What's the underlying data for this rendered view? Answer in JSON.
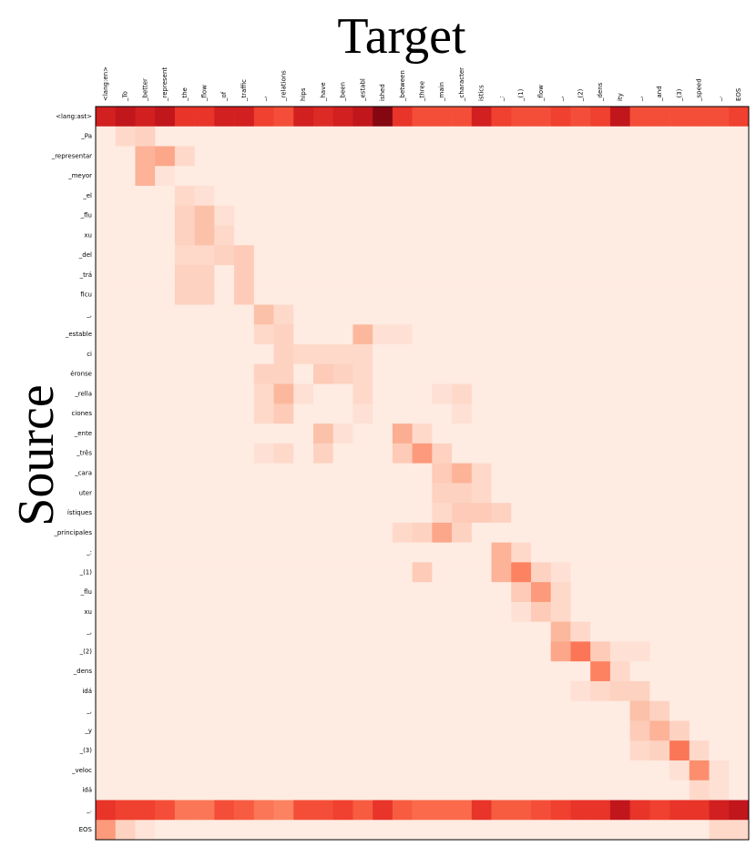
{
  "chart_data": {
    "type": "heatmap",
    "x_label": "Target",
    "y_label": "Source",
    "x_categories": [
      "<lang:en>",
      "_To",
      "_better",
      "_represent",
      "_the",
      "_flow",
      "_of",
      "_traffic",
      "_,",
      "_relations",
      "hips",
      "_have",
      "_been",
      "_establ",
      "ished",
      "_between",
      "_three",
      "_main",
      "_character",
      "istics",
      "_:",
      "_(1)",
      "_flow",
      "_,",
      "_(2)",
      "_dens",
      "ity",
      "_,",
      "_and",
      "_(3)",
      "_speed",
      "_.",
      "EOS"
    ],
    "y_categories": [
      "<lang:ast>",
      "_Pa",
      "_representar",
      "_meyor",
      "_el",
      "_flu",
      "xu",
      "_del",
      "_trá",
      "ficu",
      "_,",
      "_estable",
      "ci",
      "éronse",
      "_rella",
      "ciones",
      "_ente",
      "_três",
      "_cara",
      "uter",
      "ístiques",
      "_principales",
      "_:",
      "_(1)",
      "_flu",
      "xu",
      "_,",
      "_(2)",
      "_dens",
      "idá",
      "_,",
      "_y",
      "_(3)",
      "_veloc",
      "idá",
      "_.",
      "EOS"
    ],
    "zlim": [
      0,
      1
    ],
    "colorscale": [
      "#fff5f0",
      "#fcbba1",
      "#fc9272",
      "#fb6a4a",
      "#ef3b2c",
      "#cb181d",
      "#67000d"
    ],
    "values": [
      [
        0.8,
        0.85,
        0.8,
        0.85,
        0.7,
        0.7,
        0.8,
        0.8,
        0.65,
        0.6,
        0.8,
        0.75,
        0.8,
        0.85,
        0.95,
        0.7,
        0.6,
        0.6,
        0.6,
        0.8,
        0.65,
        0.6,
        0.6,
        0.65,
        0.6,
        0.65,
        0.85,
        0.6,
        0.6,
        0.6,
        0.6,
        0.6,
        0.65
      ],
      [
        0.03,
        0.08,
        0.1,
        0.03,
        0.03,
        0.03,
        0.03,
        0.03,
        0.03,
        0.03,
        0.03,
        0.03,
        0.03,
        0.03,
        0.03,
        0.03,
        0.03,
        0.03,
        0.03,
        0.03,
        0.03,
        0.03,
        0.03,
        0.03,
        0.03,
        0.03,
        0.03,
        0.03,
        0.03,
        0.03,
        0.03,
        0.03,
        0.03
      ],
      [
        0.03,
        0.03,
        0.2,
        0.25,
        0.08,
        0.03,
        0.03,
        0.03,
        0.03,
        0.03,
        0.03,
        0.03,
        0.03,
        0.03,
        0.03,
        0.03,
        0.03,
        0.03,
        0.03,
        0.03,
        0.03,
        0.03,
        0.03,
        0.03,
        0.03,
        0.03,
        0.03,
        0.03,
        0.03,
        0.03,
        0.03,
        0.03,
        0.03
      ],
      [
        0.03,
        0.03,
        0.2,
        0.05,
        0.03,
        0.03,
        0.03,
        0.03,
        0.03,
        0.03,
        0.03,
        0.03,
        0.03,
        0.03,
        0.03,
        0.03,
        0.03,
        0.03,
        0.03,
        0.03,
        0.03,
        0.03,
        0.03,
        0.03,
        0.03,
        0.03,
        0.03,
        0.03,
        0.03,
        0.03,
        0.03,
        0.03,
        0.03
      ],
      [
        0.03,
        0.03,
        0.03,
        0.03,
        0.08,
        0.06,
        0.03,
        0.03,
        0.03,
        0.03,
        0.03,
        0.03,
        0.03,
        0.03,
        0.03,
        0.03,
        0.03,
        0.03,
        0.03,
        0.03,
        0.03,
        0.03,
        0.03,
        0.03,
        0.03,
        0.03,
        0.03,
        0.03,
        0.03,
        0.03,
        0.03,
        0.03,
        0.03
      ],
      [
        0.03,
        0.03,
        0.03,
        0.03,
        0.1,
        0.15,
        0.06,
        0.03,
        0.03,
        0.03,
        0.03,
        0.03,
        0.03,
        0.03,
        0.03,
        0.03,
        0.03,
        0.03,
        0.03,
        0.03,
        0.03,
        0.03,
        0.03,
        0.03,
        0.03,
        0.03,
        0.03,
        0.03,
        0.03,
        0.03,
        0.03,
        0.03,
        0.03
      ],
      [
        0.03,
        0.03,
        0.03,
        0.03,
        0.1,
        0.15,
        0.08,
        0.03,
        0.03,
        0.03,
        0.03,
        0.03,
        0.03,
        0.03,
        0.03,
        0.03,
        0.03,
        0.03,
        0.03,
        0.03,
        0.03,
        0.03,
        0.03,
        0.03,
        0.03,
        0.03,
        0.03,
        0.03,
        0.03,
        0.03,
        0.03,
        0.03,
        0.03
      ],
      [
        0.03,
        0.03,
        0.03,
        0.03,
        0.08,
        0.08,
        0.1,
        0.12,
        0.03,
        0.03,
        0.03,
        0.03,
        0.03,
        0.03,
        0.03,
        0.03,
        0.03,
        0.03,
        0.03,
        0.03,
        0.03,
        0.03,
        0.03,
        0.03,
        0.03,
        0.03,
        0.03,
        0.03,
        0.03,
        0.03,
        0.03,
        0.03,
        0.03
      ],
      [
        0.03,
        0.03,
        0.03,
        0.03,
        0.1,
        0.1,
        0.03,
        0.12,
        0.03,
        0.03,
        0.03,
        0.03,
        0.03,
        0.03,
        0.03,
        0.03,
        0.03,
        0.03,
        0.03,
        0.03,
        0.03,
        0.03,
        0.03,
        0.03,
        0.03,
        0.03,
        0.03,
        0.03,
        0.03,
        0.03,
        0.03,
        0.03,
        0.03
      ],
      [
        0.03,
        0.03,
        0.03,
        0.03,
        0.1,
        0.1,
        0.03,
        0.12,
        0.03,
        0.03,
        0.03,
        0.03,
        0.03,
        0.03,
        0.03,
        0.03,
        0.03,
        0.03,
        0.03,
        0.03,
        0.03,
        0.03,
        0.03,
        0.03,
        0.03,
        0.03,
        0.03,
        0.03,
        0.03,
        0.03,
        0.03,
        0.03,
        0.03
      ],
      [
        0.03,
        0.03,
        0.03,
        0.03,
        0.03,
        0.03,
        0.03,
        0.03,
        0.15,
        0.08,
        0.03,
        0.03,
        0.03,
        0.03,
        0.03,
        0.03,
        0.03,
        0.03,
        0.03,
        0.03,
        0.03,
        0.03,
        0.03,
        0.03,
        0.03,
        0.03,
        0.03,
        0.03,
        0.03,
        0.03,
        0.03,
        0.03,
        0.03
      ],
      [
        0.03,
        0.03,
        0.03,
        0.03,
        0.03,
        0.03,
        0.03,
        0.03,
        0.08,
        0.1,
        0.03,
        0.03,
        0.03,
        0.18,
        0.06,
        0.06,
        0.03,
        0.03,
        0.03,
        0.03,
        0.03,
        0.03,
        0.03,
        0.03,
        0.03,
        0.03,
        0.03,
        0.03,
        0.03,
        0.03,
        0.03,
        0.03,
        0.03
      ],
      [
        0.03,
        0.03,
        0.03,
        0.03,
        0.03,
        0.03,
        0.03,
        0.03,
        0.03,
        0.1,
        0.08,
        0.08,
        0.08,
        0.08,
        0.03,
        0.03,
        0.03,
        0.03,
        0.03,
        0.03,
        0.03,
        0.03,
        0.03,
        0.03,
        0.03,
        0.03,
        0.03,
        0.03,
        0.03,
        0.03,
        0.03,
        0.03,
        0.03
      ],
      [
        0.03,
        0.03,
        0.03,
        0.03,
        0.03,
        0.03,
        0.03,
        0.03,
        0.1,
        0.1,
        0.03,
        0.12,
        0.1,
        0.08,
        0.03,
        0.03,
        0.03,
        0.03,
        0.03,
        0.03,
        0.03,
        0.03,
        0.03,
        0.03,
        0.03,
        0.03,
        0.03,
        0.03,
        0.03,
        0.03,
        0.03,
        0.03,
        0.03
      ],
      [
        0.03,
        0.03,
        0.03,
        0.03,
        0.03,
        0.03,
        0.03,
        0.03,
        0.08,
        0.18,
        0.06,
        0.03,
        0.03,
        0.08,
        0.03,
        0.03,
        0.03,
        0.06,
        0.08,
        0.03,
        0.03,
        0.03,
        0.03,
        0.03,
        0.03,
        0.03,
        0.03,
        0.03,
        0.03,
        0.03,
        0.03,
        0.03,
        0.03
      ],
      [
        0.03,
        0.03,
        0.03,
        0.03,
        0.03,
        0.03,
        0.03,
        0.03,
        0.08,
        0.12,
        0.03,
        0.03,
        0.03,
        0.06,
        0.03,
        0.03,
        0.03,
        0.03,
        0.06,
        0.03,
        0.03,
        0.03,
        0.03,
        0.03,
        0.03,
        0.03,
        0.03,
        0.03,
        0.03,
        0.03,
        0.03,
        0.03,
        0.03
      ],
      [
        0.03,
        0.03,
        0.03,
        0.03,
        0.03,
        0.03,
        0.03,
        0.03,
        0.03,
        0.03,
        0.03,
        0.15,
        0.06,
        0.03,
        0.03,
        0.22,
        0.08,
        0.03,
        0.03,
        0.03,
        0.03,
        0.03,
        0.03,
        0.03,
        0.03,
        0.03,
        0.03,
        0.03,
        0.03,
        0.03,
        0.03,
        0.03,
        0.03
      ],
      [
        0.03,
        0.03,
        0.03,
        0.03,
        0.03,
        0.03,
        0.03,
        0.03,
        0.06,
        0.08,
        0.03,
        0.1,
        0.03,
        0.03,
        0.03,
        0.12,
        0.3,
        0.1,
        0.03,
        0.03,
        0.03,
        0.03,
        0.03,
        0.03,
        0.03,
        0.03,
        0.03,
        0.03,
        0.03,
        0.03,
        0.03,
        0.03,
        0.03
      ],
      [
        0.03,
        0.03,
        0.03,
        0.03,
        0.03,
        0.03,
        0.03,
        0.03,
        0.03,
        0.03,
        0.03,
        0.03,
        0.03,
        0.03,
        0.03,
        0.03,
        0.03,
        0.12,
        0.2,
        0.08,
        0.03,
        0.03,
        0.03,
        0.03,
        0.03,
        0.03,
        0.03,
        0.03,
        0.03,
        0.03,
        0.03,
        0.03,
        0.03
      ],
      [
        0.03,
        0.03,
        0.03,
        0.03,
        0.03,
        0.03,
        0.03,
        0.03,
        0.03,
        0.03,
        0.03,
        0.03,
        0.03,
        0.03,
        0.03,
        0.03,
        0.03,
        0.1,
        0.1,
        0.08,
        0.03,
        0.03,
        0.03,
        0.03,
        0.03,
        0.03,
        0.03,
        0.03,
        0.03,
        0.03,
        0.03,
        0.03,
        0.03
      ],
      [
        0.03,
        0.03,
        0.03,
        0.03,
        0.03,
        0.03,
        0.03,
        0.03,
        0.03,
        0.03,
        0.03,
        0.03,
        0.03,
        0.03,
        0.03,
        0.03,
        0.03,
        0.08,
        0.12,
        0.12,
        0.1,
        0.03,
        0.03,
        0.03,
        0.03,
        0.03,
        0.03,
        0.03,
        0.03,
        0.03,
        0.03,
        0.03,
        0.03
      ],
      [
        0.03,
        0.03,
        0.03,
        0.03,
        0.03,
        0.03,
        0.03,
        0.03,
        0.03,
        0.03,
        0.03,
        0.03,
        0.03,
        0.03,
        0.03,
        0.08,
        0.1,
        0.25,
        0.1,
        0.03,
        0.03,
        0.03,
        0.03,
        0.03,
        0.03,
        0.03,
        0.03,
        0.03,
        0.03,
        0.03,
        0.03,
        0.03,
        0.03
      ],
      [
        0.03,
        0.03,
        0.03,
        0.03,
        0.03,
        0.03,
        0.03,
        0.03,
        0.03,
        0.03,
        0.03,
        0.03,
        0.03,
        0.03,
        0.03,
        0.03,
        0.03,
        0.03,
        0.03,
        0.03,
        0.2,
        0.08,
        0.03,
        0.03,
        0.03,
        0.03,
        0.03,
        0.03,
        0.03,
        0.03,
        0.03,
        0.03,
        0.03
      ],
      [
        0.03,
        0.03,
        0.03,
        0.03,
        0.03,
        0.03,
        0.03,
        0.03,
        0.03,
        0.03,
        0.03,
        0.03,
        0.03,
        0.03,
        0.03,
        0.03,
        0.12,
        0.03,
        0.03,
        0.03,
        0.2,
        0.4,
        0.1,
        0.06,
        0.03,
        0.03,
        0.03,
        0.03,
        0.03,
        0.03,
        0.03,
        0.03,
        0.03
      ],
      [
        0.03,
        0.03,
        0.03,
        0.03,
        0.03,
        0.03,
        0.03,
        0.03,
        0.03,
        0.03,
        0.03,
        0.03,
        0.03,
        0.03,
        0.03,
        0.03,
        0.03,
        0.03,
        0.03,
        0.03,
        0.03,
        0.12,
        0.3,
        0.08,
        0.03,
        0.03,
        0.03,
        0.03,
        0.03,
        0.03,
        0.03,
        0.03,
        0.03
      ],
      [
        0.03,
        0.03,
        0.03,
        0.03,
        0.03,
        0.03,
        0.03,
        0.03,
        0.03,
        0.03,
        0.03,
        0.03,
        0.03,
        0.03,
        0.03,
        0.03,
        0.03,
        0.03,
        0.03,
        0.03,
        0.03,
        0.06,
        0.12,
        0.08,
        0.03,
        0.03,
        0.03,
        0.03,
        0.03,
        0.03,
        0.03,
        0.03,
        0.03
      ],
      [
        0.03,
        0.03,
        0.03,
        0.03,
        0.03,
        0.03,
        0.03,
        0.03,
        0.03,
        0.03,
        0.03,
        0.03,
        0.03,
        0.03,
        0.03,
        0.03,
        0.03,
        0.03,
        0.03,
        0.03,
        0.03,
        0.03,
        0.03,
        0.18,
        0.08,
        0.03,
        0.03,
        0.03,
        0.03,
        0.03,
        0.03,
        0.03,
        0.03
      ],
      [
        0.03,
        0.03,
        0.03,
        0.03,
        0.03,
        0.03,
        0.03,
        0.03,
        0.03,
        0.03,
        0.03,
        0.03,
        0.03,
        0.03,
        0.03,
        0.03,
        0.03,
        0.03,
        0.03,
        0.03,
        0.03,
        0.03,
        0.03,
        0.25,
        0.45,
        0.12,
        0.06,
        0.06,
        0.03,
        0.03,
        0.03,
        0.03,
        0.03
      ],
      [
        0.03,
        0.03,
        0.03,
        0.03,
        0.03,
        0.03,
        0.03,
        0.03,
        0.03,
        0.03,
        0.03,
        0.03,
        0.03,
        0.03,
        0.03,
        0.03,
        0.03,
        0.03,
        0.03,
        0.03,
        0.03,
        0.03,
        0.03,
        0.03,
        0.03,
        0.4,
        0.08,
        0.03,
        0.03,
        0.03,
        0.03,
        0.03,
        0.03
      ],
      [
        0.03,
        0.03,
        0.03,
        0.03,
        0.03,
        0.03,
        0.03,
        0.03,
        0.03,
        0.03,
        0.03,
        0.03,
        0.03,
        0.03,
        0.03,
        0.03,
        0.03,
        0.03,
        0.03,
        0.03,
        0.03,
        0.03,
        0.03,
        0.03,
        0.06,
        0.08,
        0.1,
        0.1,
        0.03,
        0.03,
        0.03,
        0.03,
        0.03
      ],
      [
        0.03,
        0.03,
        0.03,
        0.03,
        0.03,
        0.03,
        0.03,
        0.03,
        0.03,
        0.03,
        0.03,
        0.03,
        0.03,
        0.03,
        0.03,
        0.03,
        0.03,
        0.03,
        0.03,
        0.03,
        0.03,
        0.03,
        0.03,
        0.03,
        0.03,
        0.03,
        0.03,
        0.15,
        0.1,
        0.03,
        0.03,
        0.03,
        0.03
      ],
      [
        0.03,
        0.03,
        0.03,
        0.03,
        0.03,
        0.03,
        0.03,
        0.03,
        0.03,
        0.03,
        0.03,
        0.03,
        0.03,
        0.03,
        0.03,
        0.03,
        0.03,
        0.03,
        0.03,
        0.03,
        0.03,
        0.03,
        0.03,
        0.03,
        0.03,
        0.03,
        0.03,
        0.12,
        0.2,
        0.1,
        0.03,
        0.03,
        0.03
      ],
      [
        0.03,
        0.03,
        0.03,
        0.03,
        0.03,
        0.03,
        0.03,
        0.03,
        0.03,
        0.03,
        0.03,
        0.03,
        0.03,
        0.03,
        0.03,
        0.03,
        0.03,
        0.03,
        0.03,
        0.03,
        0.03,
        0.03,
        0.03,
        0.03,
        0.03,
        0.03,
        0.03,
        0.08,
        0.1,
        0.45,
        0.08,
        0.03,
        0.03
      ],
      [
        0.03,
        0.03,
        0.03,
        0.03,
        0.03,
        0.03,
        0.03,
        0.03,
        0.03,
        0.03,
        0.03,
        0.03,
        0.03,
        0.03,
        0.03,
        0.03,
        0.03,
        0.03,
        0.03,
        0.03,
        0.03,
        0.03,
        0.03,
        0.03,
        0.03,
        0.03,
        0.03,
        0.03,
        0.03,
        0.06,
        0.35,
        0.06,
        0.03
      ],
      [
        0.03,
        0.03,
        0.03,
        0.03,
        0.03,
        0.03,
        0.03,
        0.03,
        0.03,
        0.03,
        0.03,
        0.03,
        0.03,
        0.03,
        0.03,
        0.03,
        0.03,
        0.03,
        0.03,
        0.03,
        0.03,
        0.03,
        0.03,
        0.03,
        0.03,
        0.03,
        0.03,
        0.03,
        0.03,
        0.03,
        0.08,
        0.06,
        0.03
      ],
      [
        0.7,
        0.65,
        0.65,
        0.6,
        0.45,
        0.45,
        0.6,
        0.55,
        0.45,
        0.4,
        0.6,
        0.6,
        0.65,
        0.55,
        0.7,
        0.55,
        0.5,
        0.5,
        0.5,
        0.7,
        0.55,
        0.55,
        0.6,
        0.65,
        0.7,
        0.7,
        0.85,
        0.7,
        0.65,
        0.7,
        0.7,
        0.8,
        0.85
      ],
      [
        0.3,
        0.1,
        0.05,
        0.03,
        0.03,
        0.03,
        0.03,
        0.03,
        0.03,
        0.03,
        0.03,
        0.03,
        0.03,
        0.03,
        0.03,
        0.03,
        0.03,
        0.03,
        0.03,
        0.03,
        0.03,
        0.03,
        0.03,
        0.03,
        0.03,
        0.03,
        0.03,
        0.03,
        0.03,
        0.03,
        0.03,
        0.08,
        0.08
      ]
    ]
  }
}
